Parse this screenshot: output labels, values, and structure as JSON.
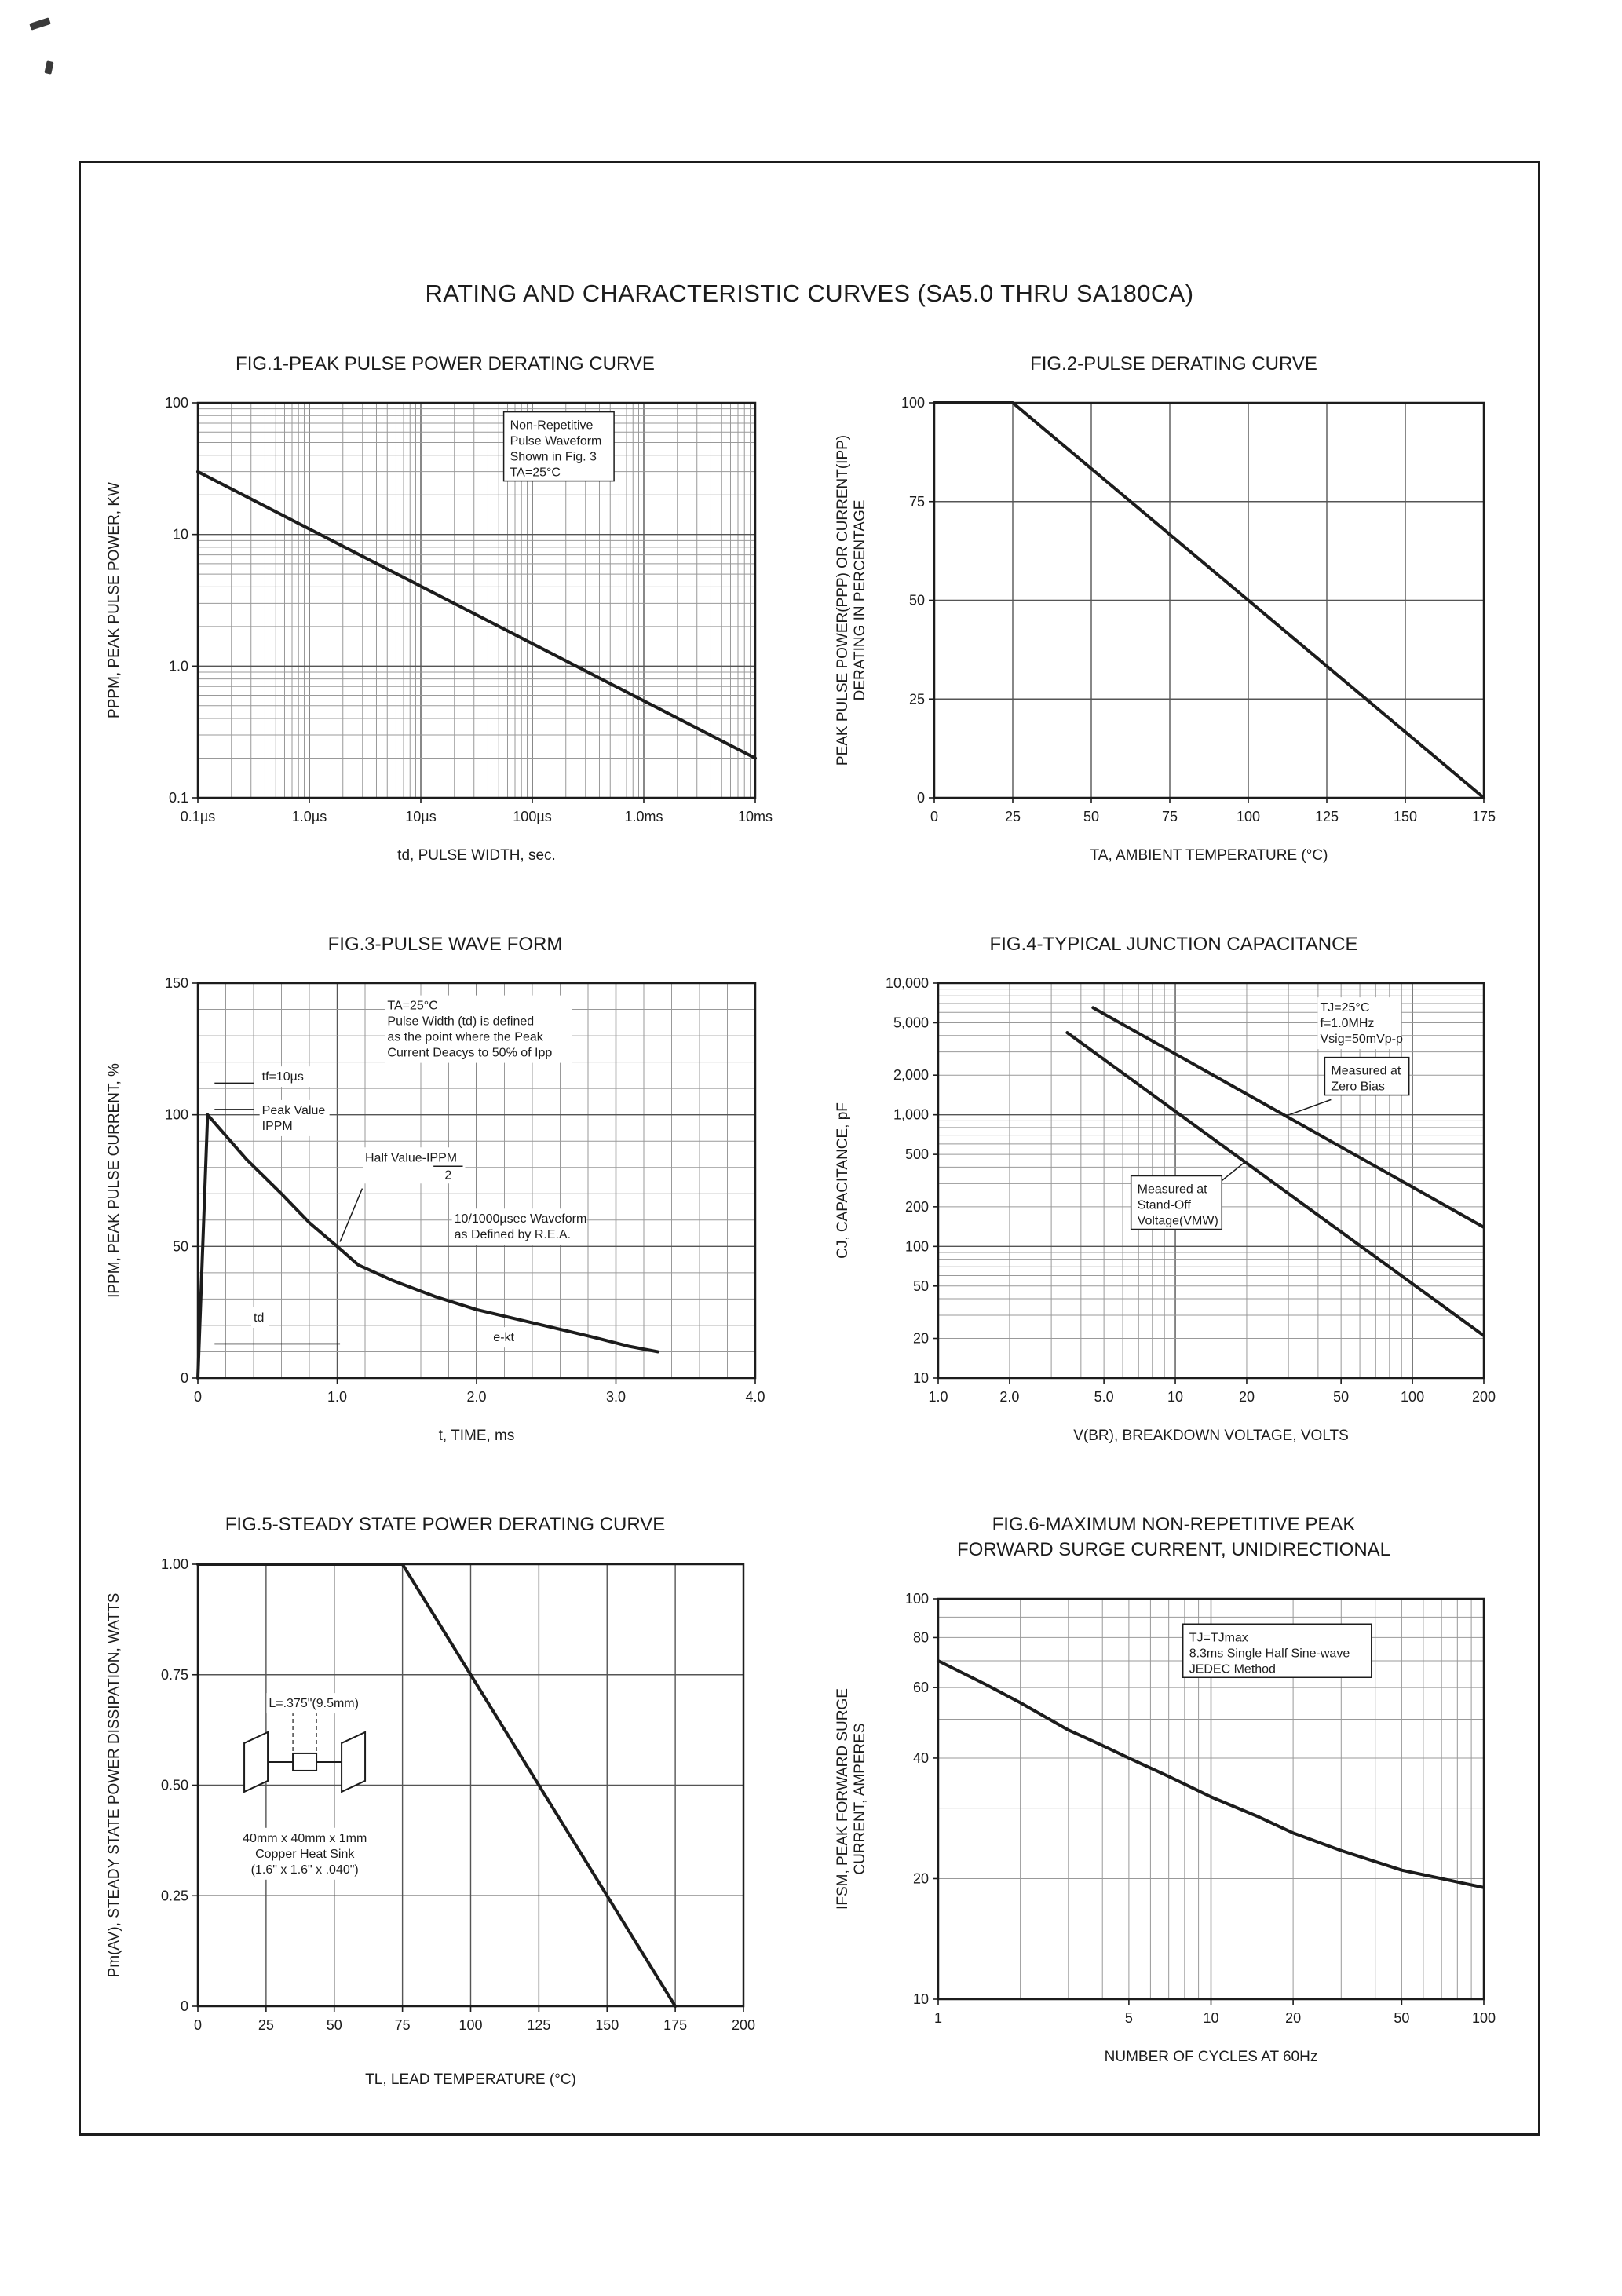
{
  "page": {
    "title": "RATING AND CHARACTERISTIC CURVES (SA5.0 THRU SA180CA)"
  },
  "colors": {
    "ink": "#1c1c1c",
    "grid_minor": "#999999",
    "grid_major": "#555555",
    "background": "#ffffff"
  },
  "chart_data": [
    {
      "type": "line",
      "title": "FIG.1-PEAK PULSE POWER DERATING CURVE",
      "x": {
        "scale": "log",
        "min": 1e-07,
        "max": 0.01,
        "title": "td, PULSE WIDTH, sec.",
        "ticks": [
          {
            "v": 1e-07,
            "label": "0.1µs"
          },
          {
            "v": 1e-06,
            "label": "1.0µs"
          },
          {
            "v": 1e-05,
            "label": "10µs"
          },
          {
            "v": 0.0001,
            "label": "100µs"
          },
          {
            "v": 0.001,
            "label": "1.0ms"
          },
          {
            "v": 0.01,
            "label": "10ms"
          }
        ]
      },
      "y": {
        "scale": "log",
        "min": 0.1,
        "max": 100,
        "title": "PPPM, PEAK PULSE POWER, KW",
        "ticks": [
          {
            "v": 0.1,
            "label": "0.1"
          },
          {
            "v": 1,
            "label": "1.0"
          },
          {
            "v": 10,
            "label": "10"
          },
          {
            "v": 100,
            "label": "100"
          }
        ]
      },
      "series": [
        {
          "name": "peak-pulse-power-derating",
          "points": [
            [
              1e-07,
              30
            ],
            [
              0.01,
              0.2
            ]
          ]
        }
      ],
      "annotations": [
        {
          "lines": [
            "Non-Repetitive",
            "Pulse Waveform",
            "Shown in Fig. 3",
            "TA=25°C"
          ],
          "fx": 0.56,
          "fy": 0.035,
          "box": true
        }
      ]
    },
    {
      "type": "line",
      "title": "FIG.2-PULSE DERATING CURVE",
      "x": {
        "scale": "linear",
        "min": 0,
        "max": 175,
        "title": "TA, AMBIENT TEMPERATURE (°C)",
        "ticks": [
          {
            "v": 0,
            "label": "0"
          },
          {
            "v": 25,
            "label": "25"
          },
          {
            "v": 50,
            "label": "50"
          },
          {
            "v": 75,
            "label": "75"
          },
          {
            "v": 100,
            "label": "100"
          },
          {
            "v": 125,
            "label": "125"
          },
          {
            "v": 150,
            "label": "150"
          },
          {
            "v": 175,
            "label": "175"
          }
        ]
      },
      "y": {
        "scale": "linear",
        "min": 0,
        "max": 100,
        "title": "PEAK PULSE POWER(PPP) OR CURRENT(IPP)\nDERATING IN PERCENTAGE",
        "ticks": [
          {
            "v": 0,
            "label": "0"
          },
          {
            "v": 25,
            "label": "25"
          },
          {
            "v": 50,
            "label": "50"
          },
          {
            "v": 75,
            "label": "75"
          },
          {
            "v": 100,
            "label": "100"
          }
        ]
      },
      "series": [
        {
          "name": "pulse-derating",
          "points": [
            [
              0,
              100
            ],
            [
              25,
              100
            ],
            [
              175,
              0
            ]
          ]
        }
      ],
      "annotations": []
    },
    {
      "type": "line",
      "title": "FIG.3-PULSE WAVE FORM",
      "x": {
        "scale": "linear",
        "min": 0,
        "max": 4,
        "minor": 0.2,
        "title": "t, TIME, ms",
        "ticks": [
          {
            "v": 0,
            "label": "0"
          },
          {
            "v": 1,
            "label": "1.0"
          },
          {
            "v": 2,
            "label": "2.0"
          },
          {
            "v": 3,
            "label": "3.0"
          },
          {
            "v": 4,
            "label": "4.0"
          }
        ]
      },
      "y": {
        "scale": "linear",
        "min": 0,
        "max": 150,
        "minor": 10,
        "title": "IPPM, PEAK PULSE CURRENT, %",
        "ticks": [
          {
            "v": 0,
            "label": "0"
          },
          {
            "v": 50,
            "label": "50"
          },
          {
            "v": 100,
            "label": "100"
          },
          {
            "v": 150,
            "label": "150"
          }
        ]
      },
      "series": [
        {
          "name": "pulse-waveform",
          "points": [
            [
              0,
              0
            ],
            [
              0.07,
              100
            ],
            [
              0.35,
              83
            ],
            [
              0.6,
              70
            ],
            [
              0.8,
              59
            ],
            [
              1.0,
              50
            ],
            [
              1.15,
              43
            ],
            [
              1.4,
              37
            ],
            [
              1.7,
              31
            ],
            [
              2.0,
              26
            ],
            [
              2.4,
              21
            ],
            [
              2.8,
              16
            ],
            [
              3.1,
              12
            ],
            [
              3.3,
              10
            ]
          ]
        }
      ],
      "shapes": [
        {
          "x1": 0.12,
          "y1": 112,
          "x2": 0.4,
          "y2": 112
        },
        {
          "x1": 0.12,
          "y1": 102,
          "x2": 0.4,
          "y2": 102
        },
        {
          "x1": 0.12,
          "y1": 13,
          "x2": 1.02,
          "y2": 13
        }
      ],
      "annotations": [
        {
          "lines": [
            "tf=10µs"
          ],
          "fx": 0.115,
          "fy": 0.215
        },
        {
          "lines": [
            "Peak Value",
            "IPPM"
          ],
          "fx": 0.115,
          "fy": 0.3
        },
        {
          "lines": [
            "TA=25°C",
            "Pulse Width (td) is defined",
            "as the point where the Peak",
            "Current Deacys to 50% of Ipp"
          ],
          "fx": 0.34,
          "fy": 0.035
        },
        {
          "lines": [
            "Half Value-IPPM",
            "2"
          ],
          "fraction": true,
          "fx": 0.3,
          "fy": 0.42,
          "leader": [
            0.295,
            0.52,
            0.255,
            0.655
          ]
        },
        {
          "lines": [
            "10/1000µsec Waveform",
            "as Defined by R.E.A."
          ],
          "fx": 0.46,
          "fy": 0.575
        },
        {
          "lines": [
            "td"
          ],
          "fx": 0.1,
          "fy": 0.825
        },
        {
          "lines": [
            "e-kt"
          ],
          "fx": 0.53,
          "fy": 0.875
        }
      ]
    },
    {
      "type": "line",
      "title": "FIG.4-TYPICAL JUNCTION CAPACITANCE",
      "x": {
        "scale": "log",
        "min": 1,
        "max": 200,
        "title": "V(BR), BREAKDOWN VOLTAGE, VOLTS",
        "ticks": [
          {
            "v": 1,
            "label": "1.0"
          },
          {
            "v": 2,
            "label": "2.0"
          },
          {
            "v": 5,
            "label": "5.0"
          },
          {
            "v": 10,
            "label": "10"
          },
          {
            "v": 20,
            "label": "20"
          },
          {
            "v": 50,
            "label": "50"
          },
          {
            "v": 100,
            "label": "100"
          },
          {
            "v": 200,
            "label": "200"
          }
        ]
      },
      "y": {
        "scale": "log",
        "min": 10,
        "max": 10000,
        "title": "CJ, CAPACITANCE, pF",
        "ticks": [
          {
            "v": 10,
            "label": "10"
          },
          {
            "v": 20,
            "label": "20"
          },
          {
            "v": 50,
            "label": "50"
          },
          {
            "v": 100,
            "label": "100"
          },
          {
            "v": 200,
            "label": "200"
          },
          {
            "v": 500,
            "label": "500"
          },
          {
            "v": 1000,
            "label": "1,000"
          },
          {
            "v": 2000,
            "label": "2,000"
          },
          {
            "v": 5000,
            "label": "5,000"
          },
          {
            "v": 10000,
            "label": "10,000"
          }
        ]
      },
      "series": [
        {
          "name": "measured-at-zero-bias",
          "points": [
            [
              4.5,
              6500
            ],
            [
              200,
              140
            ]
          ]
        },
        {
          "name": "measured-at-stand-off-voltage",
          "points": [
            [
              3.5,
              4200
            ],
            [
              200,
              21
            ]
          ]
        }
      ],
      "annotations": [
        {
          "lines": [
            "TJ=25°C",
            "f=1.0MHz",
            "Vsig=50mVp-p"
          ],
          "fx": 0.7,
          "fy": 0.04
        },
        {
          "lines": [
            "Measured at",
            "Zero Bias"
          ],
          "box": true,
          "fx": 0.72,
          "fy": 0.2,
          "leader": [
            0.72,
            0.295,
            0.64,
            0.335
          ]
        },
        {
          "lines": [
            "Measured at",
            "Stand-Off",
            "Voltage(VMW)"
          ],
          "box": true,
          "fx": 0.365,
          "fy": 0.5,
          "leader": [
            0.52,
            0.5,
            0.565,
            0.45
          ]
        }
      ]
    },
    {
      "type": "line",
      "title": "FIG.5-STEADY STATE POWER DERATING CURVE",
      "x": {
        "scale": "linear",
        "min": 0,
        "max": 200,
        "title": "TL, LEAD TEMPERATURE (°C)",
        "ticks": [
          {
            "v": 0,
            "label": "0"
          },
          {
            "v": 25,
            "label": "25"
          },
          {
            "v": 50,
            "label": "50"
          },
          {
            "v": 75,
            "label": "75"
          },
          {
            "v": 100,
            "label": "100"
          },
          {
            "v": 125,
            "label": "125"
          },
          {
            "v": 150,
            "label": "150"
          },
          {
            "v": 175,
            "label": "175"
          },
          {
            "v": 200,
            "label": "200"
          }
        ]
      },
      "y": {
        "scale": "linear",
        "min": 0,
        "max": 1.0,
        "title": "Pm(AV), STEADY STATE POWER DISSIPATION, WATTS",
        "ticks": [
          {
            "v": 0,
            "label": "0"
          },
          {
            "v": 0.25,
            "label": "0.25"
          },
          {
            "v": 0.5,
            "label": "0.50"
          },
          {
            "v": 0.75,
            "label": "0.75"
          },
          {
            "v": 1.0,
            "label": "1.00"
          }
        ]
      },
      "series": [
        {
          "name": "steady-state-power-derating",
          "points": [
            [
              0,
              1
            ],
            [
              75,
              1
            ],
            [
              175,
              0
            ]
          ]
        }
      ],
      "diagram": {
        "type": "heatsink",
        "fx": 0.085,
        "fy": 0.38
      },
      "annotations": [
        {
          "lines": [
            "L=.375\"(9.5mm)"
          ],
          "fx": 0.13,
          "fy": 0.295
        },
        {
          "lines": [
            "40mm x 40mm x 1mm",
            "Copper Heat Sink",
            "(1.6\" x 1.6\" x .040\")"
          ],
          "align": "center",
          "fx": 0.196,
          "fy": 0.6
        }
      ]
    },
    {
      "type": "line",
      "title": "FIG.6-MAXIMUM NON-REPETITIVE PEAK FORWARD SURGE CURRENT, UNIDIRECTIONAL",
      "x": {
        "scale": "log",
        "min": 1,
        "max": 100,
        "title": "NUMBER OF CYCLES AT 60Hz",
        "ticks": [
          {
            "v": 1,
            "label": "1"
          },
          {
            "v": 5,
            "label": "5"
          },
          {
            "v": 10,
            "label": "10"
          },
          {
            "v": 20,
            "label": "20"
          },
          {
            "v": 50,
            "label": "50"
          },
          {
            "v": 100,
            "label": "100"
          }
        ]
      },
      "y": {
        "scale": "log",
        "min": 10,
        "max": 100,
        "title": "IFSM, PEAK FORWARD SURGE\nCURRENT, AMPERES",
        "ticks": [
          {
            "v": 10,
            "label": "10"
          },
          {
            "v": 20,
            "label": "20"
          },
          {
            "v": 40,
            "label": "40"
          },
          {
            "v": 60,
            "label": "60"
          },
          {
            "v": 80,
            "label": "80"
          },
          {
            "v": 100,
            "label": "100"
          }
        ]
      },
      "series": [
        {
          "name": "peak-forward-surge-current",
          "points": [
            [
              1,
              70
            ],
            [
              1.5,
              61
            ],
            [
              2,
              55
            ],
            [
              3,
              47
            ],
            [
              4,
              43
            ],
            [
              5,
              40
            ],
            [
              7,
              36
            ],
            [
              10,
              32
            ],
            [
              15,
              28.5
            ],
            [
              20,
              26
            ],
            [
              30,
              23.5
            ],
            [
              50,
              21
            ],
            [
              70,
              20
            ],
            [
              100,
              19
            ]
          ]
        }
      ],
      "annotations": [
        {
          "lines": [
            "TJ=TJmax",
            "8.3ms Single Half Sine-wave",
            "JEDEC Method"
          ],
          "box": true,
          "fx": 0.46,
          "fy": 0.075
        }
      ]
    }
  ]
}
